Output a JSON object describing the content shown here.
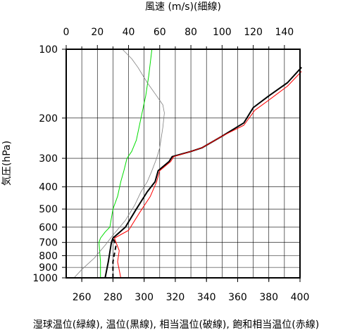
{
  "chart_data": {
    "type": "line",
    "title": "",
    "top_axis": {
      "label": "風速 (m/s)(細線)",
      "range": [
        0,
        150
      ],
      "ticks": [
        0,
        20,
        40,
        60,
        80,
        100,
        120,
        140
      ]
    },
    "bottom_axis": {
      "label": "湿球温位(緑線), 温位(黒線), 相当温位(破線), 飽和相当温位(赤線)",
      "range": [
        250,
        400
      ],
      "ticks": [
        260,
        280,
        300,
        320,
        340,
        360,
        380,
        400
      ]
    },
    "left_axis": {
      "label": "気圧(hPa)",
      "scale": "log",
      "range": [
        1000,
        100
      ],
      "ticks": [
        100,
        200,
        300,
        400,
        500,
        600,
        700,
        800,
        900,
        1000
      ]
    },
    "grid": true,
    "legend": "none",
    "series": [
      {
        "key": "wet_bulb",
        "color": "#00dd00",
        "width": 1,
        "dash": "",
        "axis": "bottom",
        "points": [
          [
            272,
            1000
          ],
          [
            272,
            850
          ],
          [
            271,
            700
          ],
          [
            272,
            670
          ],
          [
            275,
            630
          ],
          [
            278,
            600
          ],
          [
            280,
            500
          ],
          [
            283,
            440
          ],
          [
            285,
            380
          ],
          [
            287,
            340
          ],
          [
            289,
            300
          ],
          [
            292,
            280
          ],
          [
            295,
            250
          ],
          [
            298,
            200
          ],
          [
            301,
            160
          ],
          [
            303,
            130
          ],
          [
            305,
            100
          ]
        ]
      },
      {
        "key": "theta",
        "color": "#000000",
        "width": 2,
        "dash": "",
        "axis": "bottom",
        "points": [
          [
            275,
            1000
          ],
          [
            277,
            850
          ],
          [
            279,
            700
          ],
          [
            280,
            670
          ],
          [
            288,
            600
          ],
          [
            295,
            500
          ],
          [
            302,
            420
          ],
          [
            307,
            380
          ],
          [
            309,
            340
          ],
          [
            316,
            310
          ],
          [
            318,
            295
          ],
          [
            330,
            280
          ],
          [
            337,
            270
          ],
          [
            350,
            240
          ],
          [
            364,
            210
          ],
          [
            370,
            180
          ],
          [
            380,
            160
          ],
          [
            392,
            140
          ],
          [
            401,
            120
          ]
        ]
      },
      {
        "key": "theta_e",
        "color": "#000000",
        "width": 2,
        "dash": "6,4",
        "axis": "bottom",
        "points": [
          [
            280,
            1000
          ],
          [
            280,
            850
          ],
          [
            282,
            720
          ],
          [
            280,
            670
          ]
        ]
      },
      {
        "key": "theta_es",
        "color": "#ff0000",
        "width": 1,
        "dash": "",
        "axis": "bottom",
        "points": [
          [
            285,
            1000
          ],
          [
            283,
            850
          ],
          [
            284,
            760
          ],
          [
            282,
            700
          ],
          [
            281,
            670
          ],
          [
            290,
            620
          ],
          [
            297,
            520
          ],
          [
            304,
            440
          ],
          [
            308,
            380
          ],
          [
            310,
            340
          ],
          [
            317,
            310
          ],
          [
            319,
            295
          ],
          [
            330,
            280
          ],
          [
            337,
            270
          ],
          [
            350,
            240
          ],
          [
            364,
            215
          ],
          [
            371,
            185
          ],
          [
            381,
            165
          ],
          [
            392,
            145
          ],
          [
            401,
            125
          ]
        ]
      },
      {
        "key": "wind_speed",
        "color": "#808080",
        "width": 0.8,
        "dash": "",
        "axis": "top",
        "points": [
          [
            5,
            1000
          ],
          [
            10,
            920
          ],
          [
            18,
            820
          ],
          [
            25,
            720
          ],
          [
            30,
            650
          ],
          [
            38,
            560
          ],
          [
            44,
            480
          ],
          [
            48,
            420
          ],
          [
            52,
            380
          ],
          [
            55,
            340
          ],
          [
            58,
            300
          ],
          [
            60,
            270
          ],
          [
            62,
            220
          ],
          [
            63,
            190
          ],
          [
            62,
            175
          ],
          [
            58,
            160
          ],
          [
            52,
            140
          ],
          [
            46,
            120
          ],
          [
            42,
            110
          ],
          [
            36,
            100
          ]
        ]
      }
    ]
  }
}
